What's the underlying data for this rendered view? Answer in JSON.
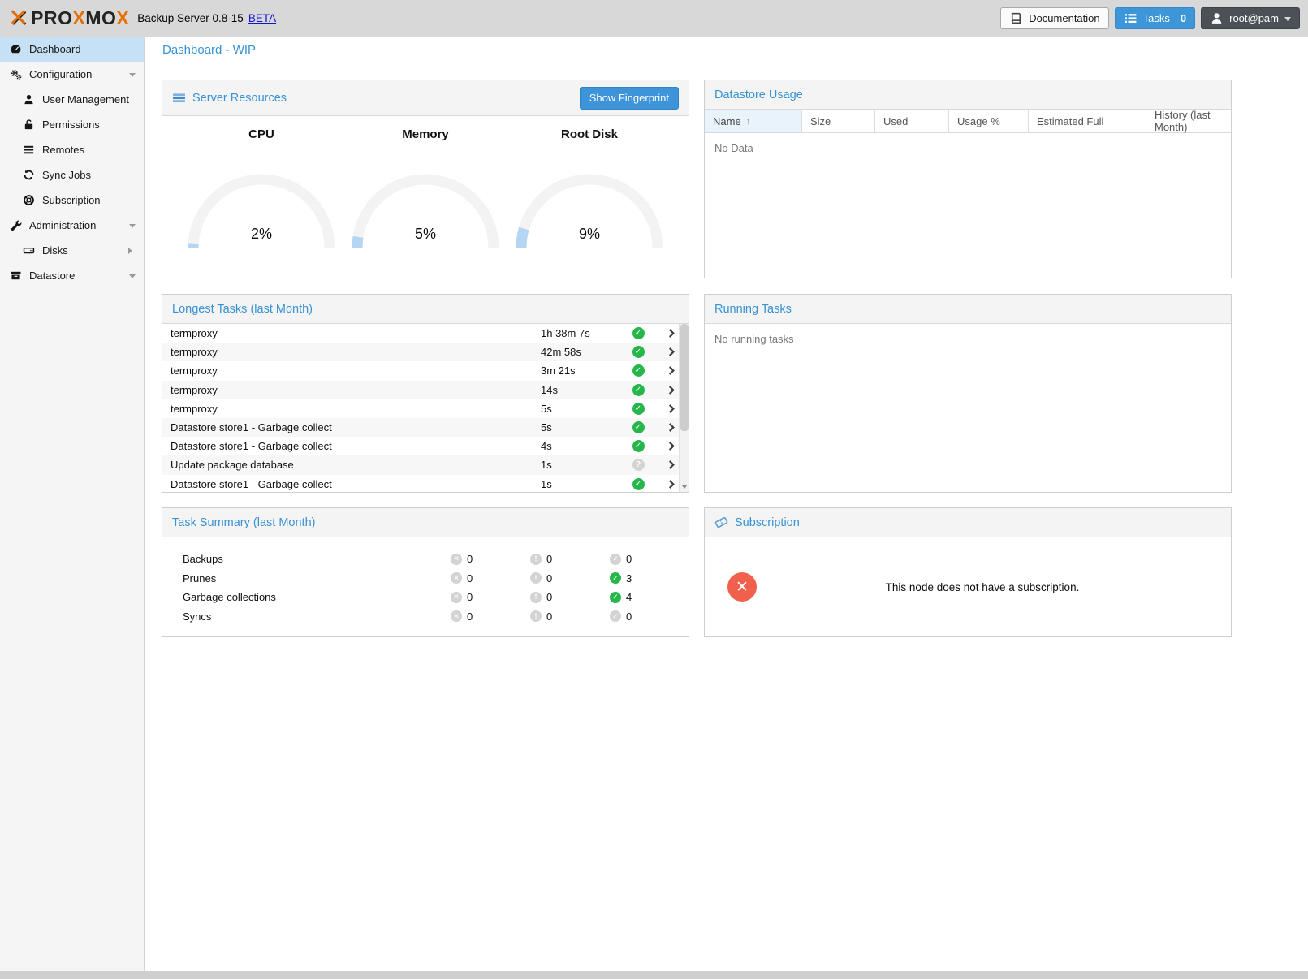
{
  "header": {
    "logo": {
      "p1": "PRO",
      "x1": "X",
      "p2": "MO",
      "x2": "X"
    },
    "product": "Backup Server 0.8-15",
    "beta_link": "BETA",
    "documentation_button": "Documentation",
    "tasks_button": "Tasks",
    "tasks_count": "0",
    "user_menu": "root@pam"
  },
  "sidebar": {
    "items": [
      {
        "label": "Dashboard"
      },
      {
        "label": "Configuration"
      },
      {
        "label": "User Management"
      },
      {
        "label": "Permissions"
      },
      {
        "label": "Remotes"
      },
      {
        "label": "Sync Jobs"
      },
      {
        "label": "Subscription"
      },
      {
        "label": "Administration"
      },
      {
        "label": "Disks"
      },
      {
        "label": "Datastore"
      }
    ]
  },
  "main": {
    "title": "Dashboard - WIP"
  },
  "server_resources": {
    "title": "Server Resources",
    "show_fingerprint_button": "Show Fingerprint",
    "gauges": [
      {
        "label": "CPU",
        "value": 2,
        "display": "2%"
      },
      {
        "label": "Memory",
        "value": 5,
        "display": "5%"
      },
      {
        "label": "Root Disk",
        "value": 9,
        "display": "9%"
      }
    ]
  },
  "datastore_usage": {
    "title": "Datastore Usage",
    "columns": [
      "Name",
      "Size",
      "Used",
      "Usage %",
      "Estimated Full",
      "History (last Month)"
    ],
    "empty": "No Data"
  },
  "longest_tasks": {
    "title": "Longest Tasks (last Month)",
    "rows": [
      {
        "name": "termproxy",
        "duration": "1h 38m 7s",
        "status": "ok"
      },
      {
        "name": "termproxy",
        "duration": "42m 58s",
        "status": "ok"
      },
      {
        "name": "termproxy",
        "duration": "3m 21s",
        "status": "ok"
      },
      {
        "name": "termproxy",
        "duration": "14s",
        "status": "ok"
      },
      {
        "name": "termproxy",
        "duration": "5s",
        "status": "ok"
      },
      {
        "name": "Datastore store1 - Garbage collect",
        "duration": "5s",
        "status": "ok"
      },
      {
        "name": "Datastore store1 - Garbage collect",
        "duration": "4s",
        "status": "ok"
      },
      {
        "name": "Update package database",
        "duration": "1s",
        "status": "unknown"
      },
      {
        "name": "Datastore store1 - Garbage collect",
        "duration": "1s",
        "status": "ok"
      }
    ]
  },
  "running_tasks": {
    "title": "Running Tasks",
    "empty": "No running tasks"
  },
  "task_summary": {
    "title": "Task Summary (last Month)",
    "rows": [
      {
        "label": "Backups",
        "error": "0",
        "warning": "0",
        "ok": "0",
        "ok_active": false
      },
      {
        "label": "Prunes",
        "error": "0",
        "warning": "0",
        "ok": "3",
        "ok_active": true
      },
      {
        "label": "Garbage collections",
        "error": "0",
        "warning": "0",
        "ok": "4",
        "ok_active": true
      },
      {
        "label": "Syncs",
        "error": "0",
        "warning": "0",
        "ok": "0",
        "ok_active": false
      }
    ]
  },
  "subscription": {
    "title": "Subscription",
    "message": "This node does not have a subscription."
  },
  "colors": {
    "accent_blue": "#3892d4",
    "gauge_fill": "#b5d6f2",
    "ok_green": "#27b64b",
    "neutral_gray": "#d3d3d3",
    "error_red": "#f0604d",
    "selected_item": "#c6e1f5"
  }
}
